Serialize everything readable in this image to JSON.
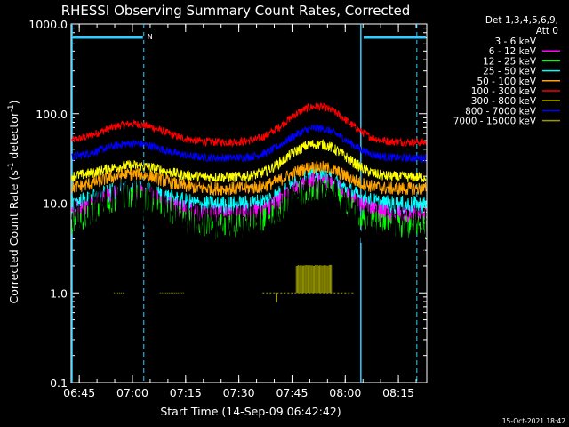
{
  "chart_data": {
    "type": "line",
    "title": "RHESSI Observing Summary Count Rates, Corrected",
    "xlabel": "Start Time (14-Sep-09 06:42:42)",
    "ylabel_main": "Corrected Count Rate (s",
    "ylabel_sup1": "-1",
    "ylabel_mid": " detector",
    "ylabel_sup2": "-1",
    "ylabel_end": ")",
    "y_scale": "log",
    "ylim": [
      0.1,
      1000
    ],
    "yticks": [
      {
        "v": 0.1,
        "label": "0.1"
      },
      {
        "v": 1,
        "label": "1.0"
      },
      {
        "v": 10,
        "label": "10.0"
      },
      {
        "v": 100,
        "label": "100.0"
      },
      {
        "v": 1000,
        "label": "1000.0"
      }
    ],
    "xlim_minutes": [
      0,
      100.3
    ],
    "xticks": [
      {
        "m": 2.3,
        "label": "06:45"
      },
      {
        "m": 17.3,
        "label": "07:00"
      },
      {
        "m": 32.3,
        "label": "07:15"
      },
      {
        "m": 47.3,
        "label": "07:30"
      },
      {
        "m": 62.3,
        "label": "07:45"
      },
      {
        "m": 77.3,
        "label": "08:00"
      },
      {
        "m": 92.3,
        "label": "08:15"
      }
    ],
    "legend_header": [
      "Det 1,3,4,5,6,9,",
      "Att 0"
    ],
    "legend_placement": "right",
    "series": [
      {
        "name": "3 - 6 keV",
        "color": "#000000",
        "noise": 0.13,
        "base": 5.0,
        "p1": 2.2,
        "p2": 2.3
      },
      {
        "name": "6 - 12 keV",
        "color": "#ff00ff",
        "noise": 0.07,
        "base": 7.5,
        "p1": 1.8,
        "p2": 2.3
      },
      {
        "name": "12 - 25 keV",
        "color": "#00ff00",
        "noise": 0.09,
        "base": 5.5,
        "p1": 2.2,
        "p2": 2.6
      },
      {
        "name": "25 - 50 keV",
        "color": "#00ffff",
        "noise": 0.07,
        "base": 9.5,
        "p1": 1.5,
        "p2": 2.0
      },
      {
        "name": "50 - 100 keV",
        "color": "#ffa500",
        "noise": 0.05,
        "base": 14.5,
        "p1": 1.45,
        "p2": 1.75
      },
      {
        "name": "100 - 300 keV",
        "color": "#ff0000",
        "noise": 0.03,
        "base": 48,
        "p1": 1.6,
        "p2": 2.5
      },
      {
        "name": "300 - 800 keV",
        "color": "#ffff00",
        "noise": 0.04,
        "base": 19.5,
        "p1": 1.35,
        "p2": 2.35
      },
      {
        "name": "800 - 7000 keV",
        "color": "#0000ff",
        "noise": 0.03,
        "base": 32,
        "p1": 1.45,
        "p2": 2.15
      },
      {
        "name": "7000 - 15000 keV",
        "color": "#999900",
        "noise": 0,
        "base": 1.0,
        "p1": 1,
        "p2": 1
      }
    ],
    "peaks_minutes": [
      17.3,
      69.3
    ],
    "flag_segments_minutes": [
      [
        0,
        20.5
      ],
      [
        82,
        100.3
      ]
    ],
    "flag_label": "N",
    "dashed_lines_minutes": [
      20.5,
      97.5
    ],
    "solid_lines_minutes": [
      0,
      81.7
    ]
  },
  "timestamp": "15-Oct-2021 18:42"
}
